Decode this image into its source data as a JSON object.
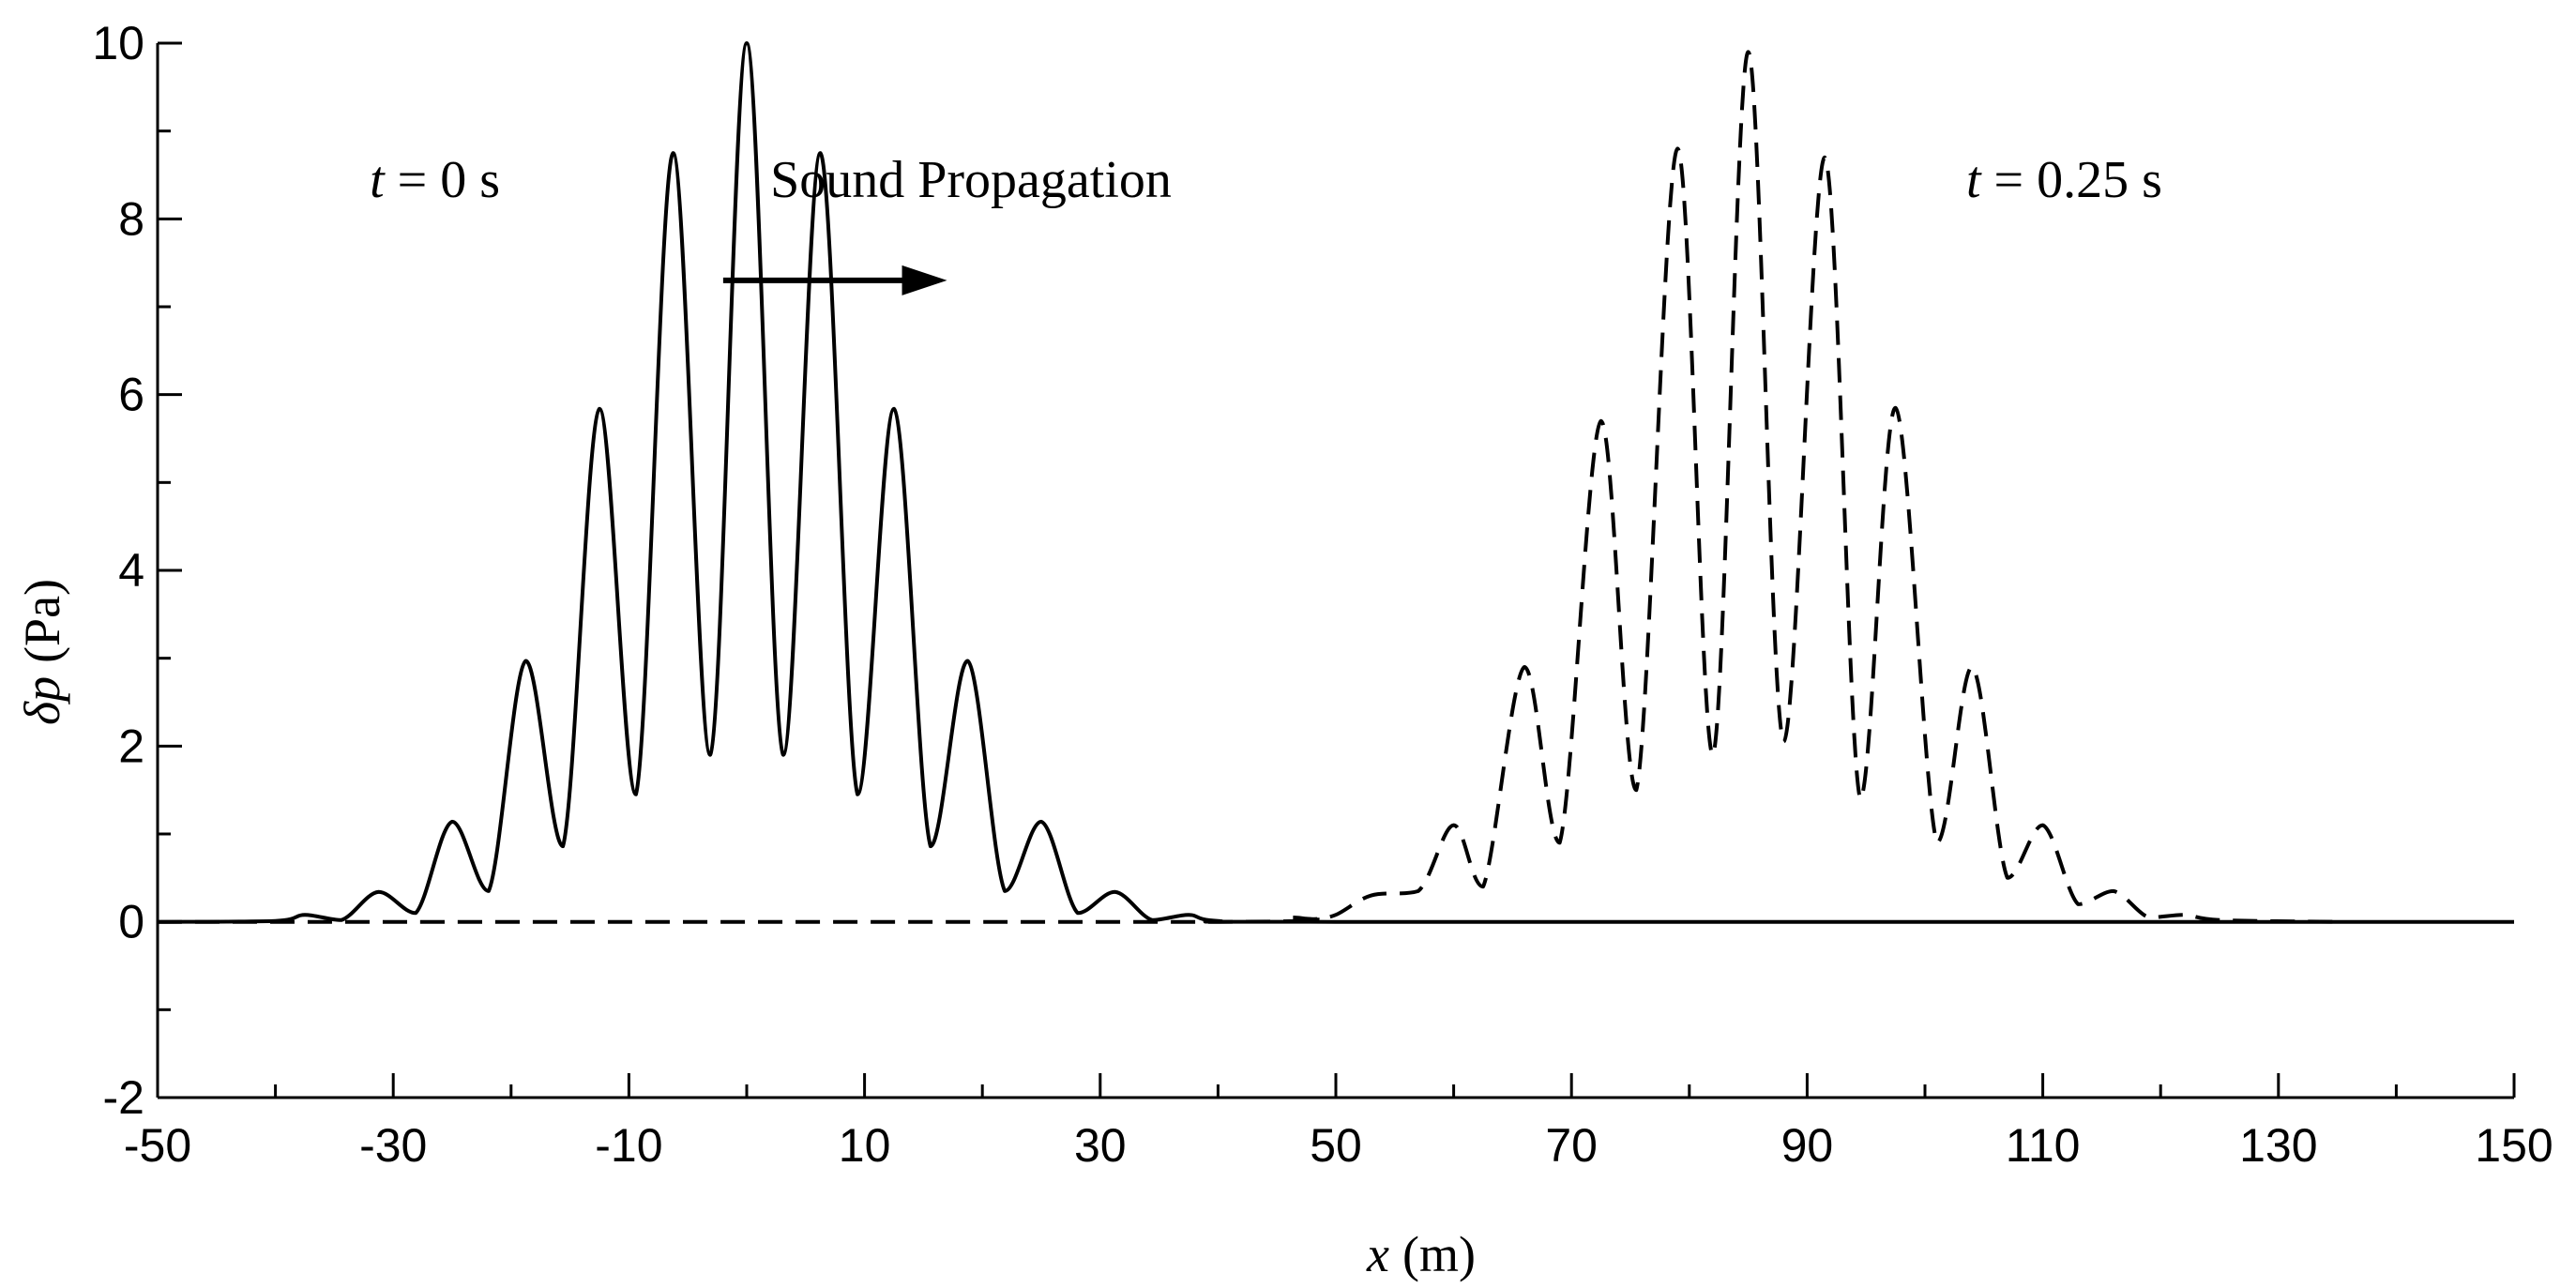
{
  "chart_data": {
    "type": "line",
    "title": "",
    "xlabel": {
      "symbol": "x",
      "unit": "(m)"
    },
    "ylabel": {
      "symbol": "δp",
      "unit": "(Pa)"
    },
    "xlim": [
      -50,
      150
    ],
    "ylim": [
      -2,
      10
    ],
    "x_ticks": [
      "-50",
      "-30",
      "-10",
      "10",
      "30",
      "50",
      "70",
      "90",
      "110",
      "130",
      "150"
    ],
    "y_ticks": [
      "-2",
      "0",
      "2",
      "4",
      "6",
      "8",
      "10"
    ],
    "grid": false,
    "legend": "none",
    "annotations": [
      {
        "name": "t0",
        "symbol": "t",
        "text": " = 0 s",
        "x": -32,
        "y": 8.25
      },
      {
        "name": "sound",
        "text": "Sound Propagation",
        "x": 2,
        "y": 8.25
      },
      {
        "name": "t025",
        "symbol": "t",
        "text": " = 0.25 s",
        "x": 103.5,
        "y": 8.25
      }
    ],
    "arrow": {
      "from": [
        -2,
        7.3
      ],
      "to": [
        17,
        7.3
      ]
    },
    "series": [
      {
        "style": "solid",
        "x": [
          -50,
          -40,
          -37.5,
          -34.4,
          -31.25,
          -28.1,
          -25,
          -21.9,
          -18.75,
          -15.6,
          -12.5,
          -9.4,
          -6.25,
          -3.1,
          0,
          3.1,
          6.25,
          9.4,
          12.5,
          15.6,
          18.75,
          21.9,
          25,
          28.1,
          31.25,
          34.4,
          37.5,
          40,
          50,
          150
        ],
        "y": [
          0,
          0.01,
          0.08,
          0.02,
          0.34,
          0.1,
          1.14,
          0.35,
          2.97,
          0.86,
          5.84,
          1.45,
          8.75,
          1.9,
          10,
          1.9,
          8.75,
          1.45,
          5.84,
          0.86,
          2.97,
          0.35,
          1.14,
          0.1,
          0.34,
          0.02,
          0.08,
          0.01,
          0,
          0
        ]
      },
      {
        "style": "dashed",
        "x": [
          -50,
          40,
          46,
          48,
          50,
          53,
          57,
          60,
          62.5,
          66,
          69,
          72.5,
          75.5,
          79,
          82,
          85,
          88,
          91.5,
          94.5,
          97.5,
          101,
          104,
          107,
          110,
          113,
          116,
          119,
          122,
          125,
          135
        ],
        "y": [
          0,
          0,
          0.05,
          0.03,
          0.08,
          0.3,
          0.35,
          1.1,
          0.4,
          2.9,
          0.9,
          5.7,
          1.5,
          8.8,
          1.9,
          9.9,
          2.05,
          8.7,
          1.4,
          5.85,
          0.9,
          2.9,
          0.5,
          1.1,
          0.2,
          0.35,
          0.05,
          0.08,
          0.02,
          0
        ]
      }
    ]
  }
}
